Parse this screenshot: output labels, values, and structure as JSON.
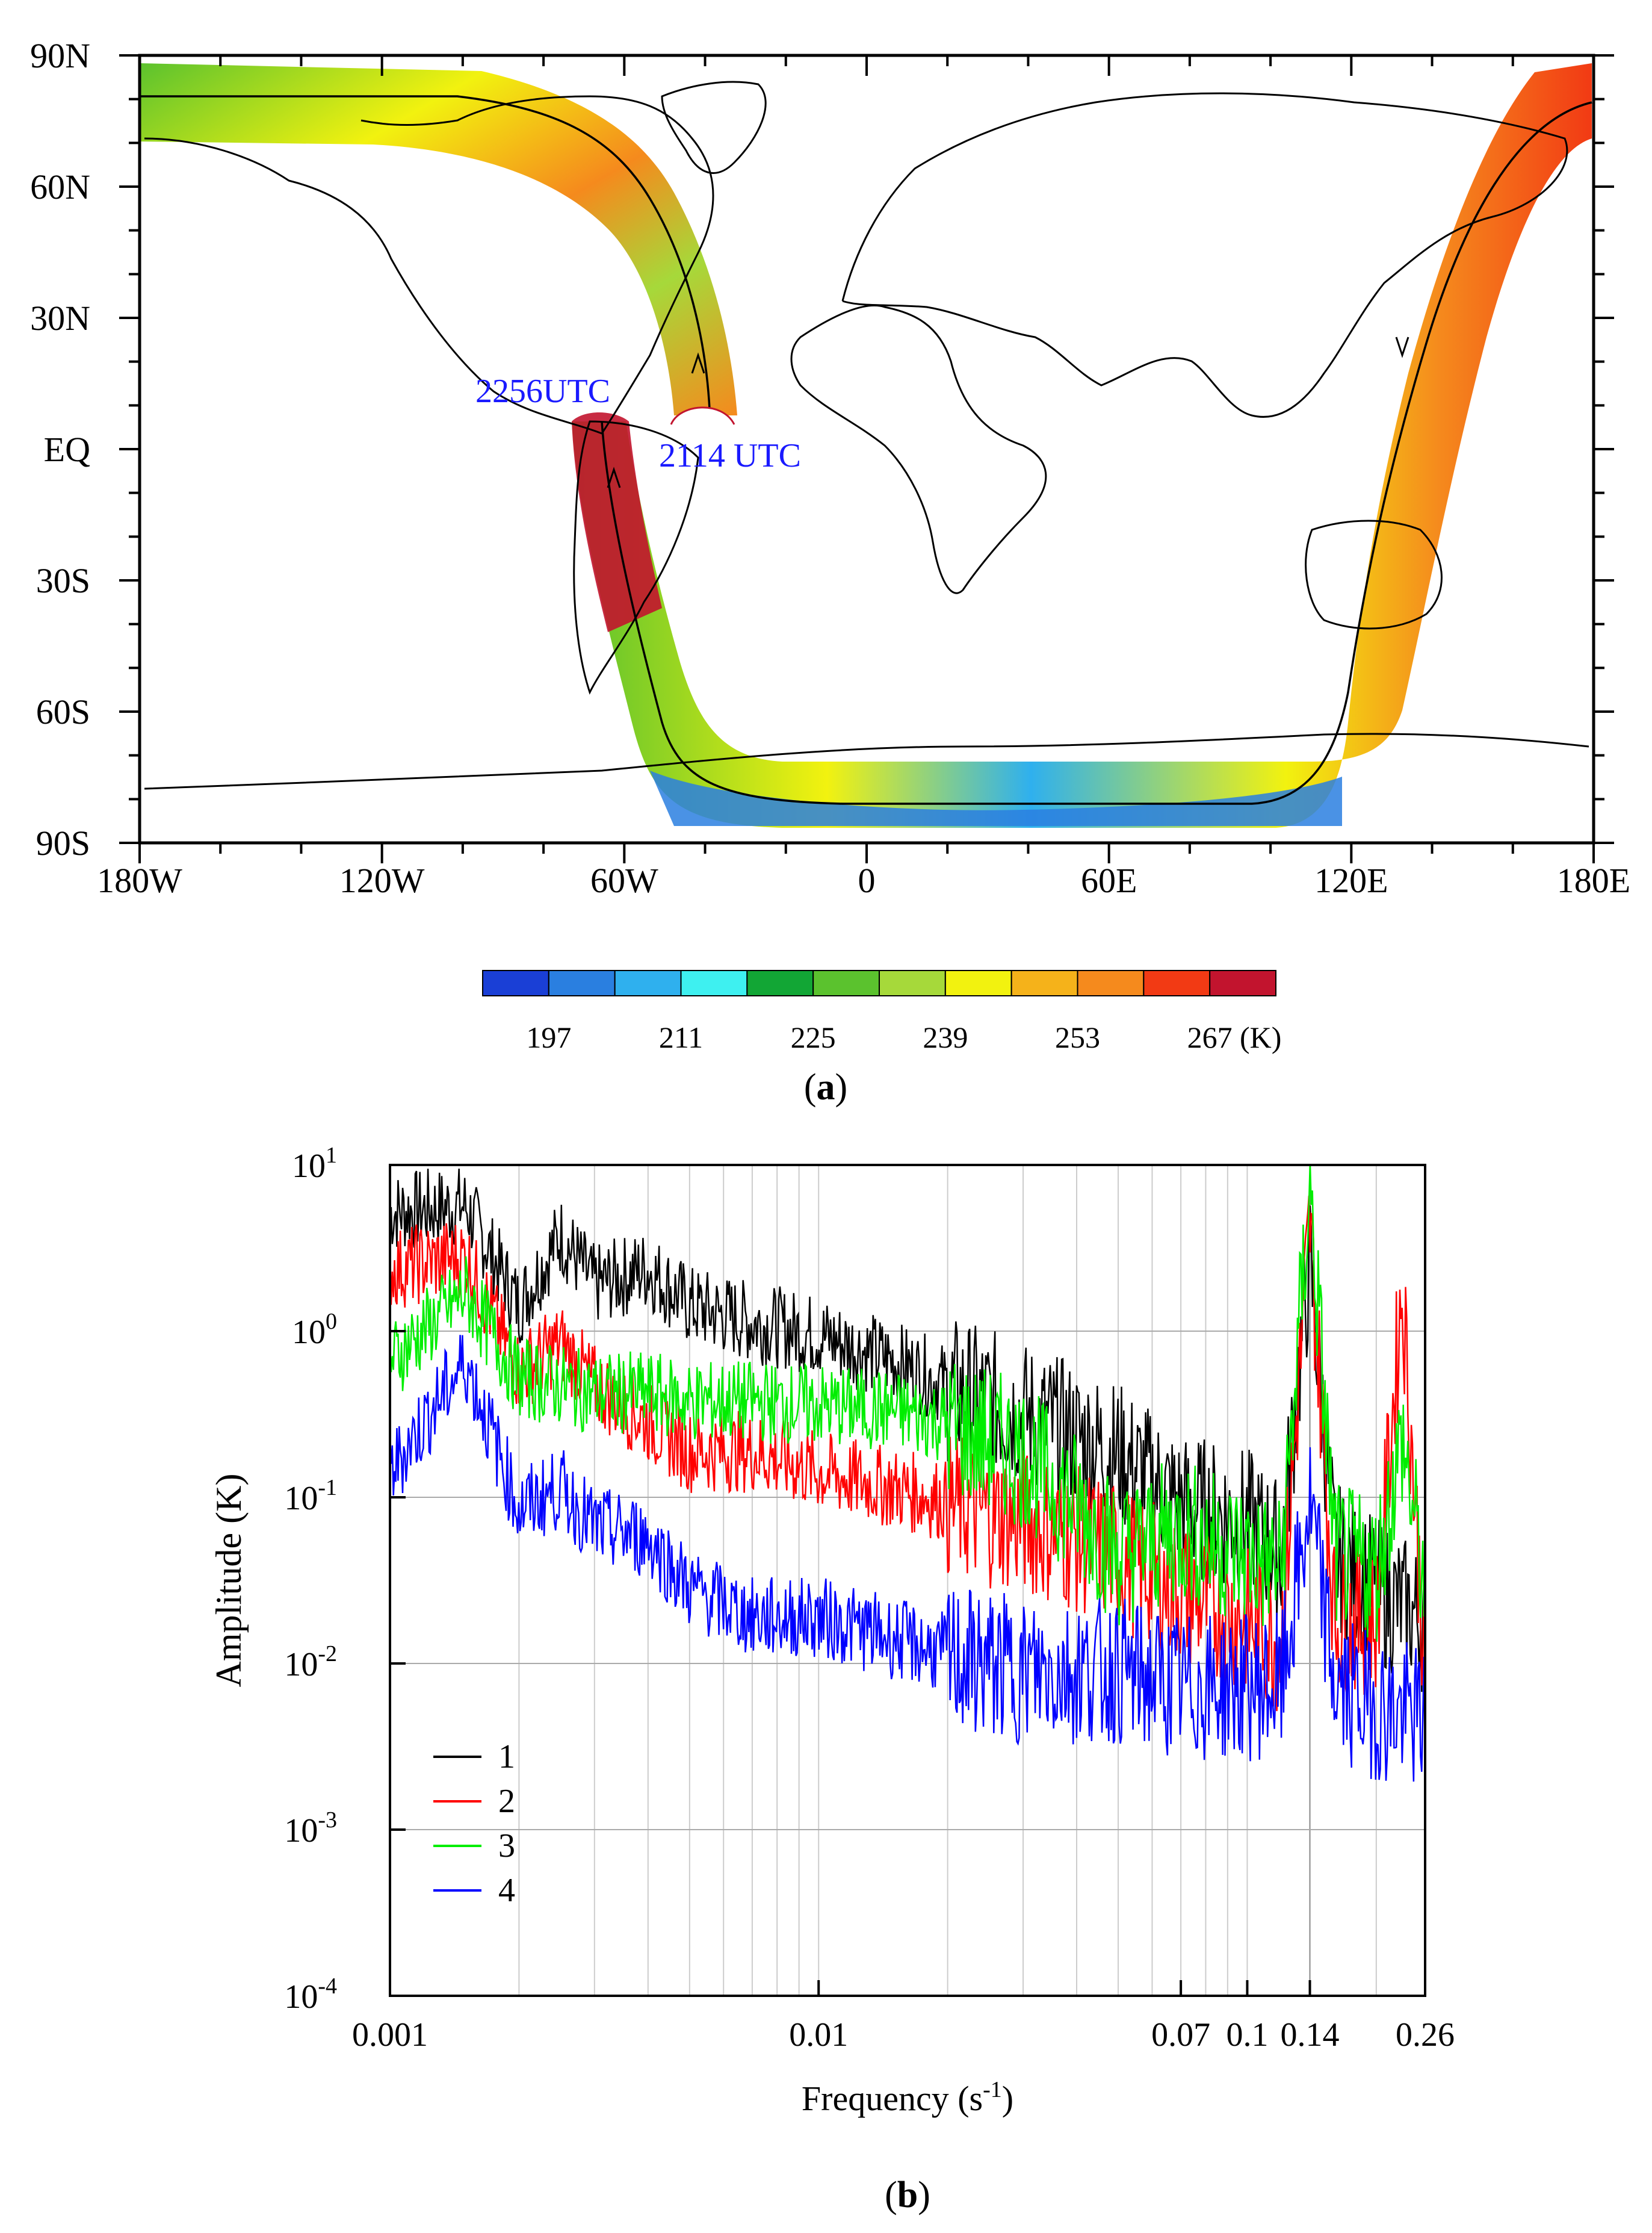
{
  "chart_data": [
    {
      "panel": "(a)",
      "type": "heatmap",
      "title": "",
      "lon_ticks": [
        "180W",
        "120W",
        "60W",
        "0",
        "60E",
        "120E",
        "180E"
      ],
      "lat_ticks": [
        "90N",
        "60N",
        "30N",
        "EQ",
        "30S",
        "60S",
        "90S"
      ],
      "lon_range": [
        -180,
        180
      ],
      "lat_range": [
        -90,
        90
      ],
      "annotations": [
        "2256UTC",
        "2114 UTC"
      ],
      "swath_track": [
        {
          "lon": -50,
          "lat": 3
        },
        {
          "lon": -48,
          "lat": 20
        },
        {
          "lon": -50,
          "lat": 40
        },
        {
          "lon": -60,
          "lat": 60
        },
        {
          "lon": -80,
          "lat": 75
        },
        {
          "lon": -120,
          "lat": 80
        },
        {
          "lon": -175,
          "lat": 80
        }
      ],
      "swath_track_2": [
        {
          "lon": -62,
          "lat": 6
        },
        {
          "lon": -60,
          "lat": -20
        },
        {
          "lon": -52,
          "lat": -45
        },
        {
          "lon": -35,
          "lat": -68
        },
        {
          "lon": 0,
          "lat": -79
        },
        {
          "lon": 50,
          "lat": -79
        },
        {
          "lon": 95,
          "lat": -72
        },
        {
          "lon": 115,
          "lat": -55
        },
        {
          "lon": 123,
          "lat": -30
        },
        {
          "lon": 130,
          "lat": 0
        },
        {
          "lon": 137,
          "lat": 30
        },
        {
          "lon": 148,
          "lat": 60
        },
        {
          "lon": 160,
          "lat": 75
        },
        {
          "lon": 180,
          "lat": 79
        }
      ],
      "colorbar": {
        "colors": [
          "#1a3fd6",
          "#2a7fe0",
          "#2fb0ee",
          "#3ef0f0",
          "#12a635",
          "#5bc22e",
          "#a6d93a",
          "#f2f20f",
          "#f5b21a",
          "#f58a1d",
          "#f23a14",
          "#c2142e"
        ],
        "tick_labels": [
          "197",
          "211",
          "225",
          "239",
          "253",
          "267"
        ],
        "unit": "(K)"
      }
    },
    {
      "panel": "(b)",
      "type": "line",
      "xscale": "log",
      "yscale": "log",
      "xlabel": "Frequency (s",
      "xlabel_sup": "-1",
      "xlabel_end": ")",
      "ylabel": "Amplitude (K)",
      "xlim": [
        0.001,
        0.26
      ],
      "ylim": [
        0.0001,
        10
      ],
      "x_ticks": [
        {
          "value": 0.001,
          "label": "0.001"
        },
        {
          "value": 0.01,
          "label": "0.01"
        },
        {
          "value": 0.07,
          "label": "0.07"
        },
        {
          "value": 0.1,
          "label": "0.1"
        },
        {
          "value": 0.14,
          "label": "0.14"
        },
        {
          "value": 0.26,
          "label": "0.26"
        }
      ],
      "y_ticks": [
        {
          "value": 10,
          "base": "10",
          "exp": "1"
        },
        {
          "value": 1,
          "base": "10",
          "exp": "0"
        },
        {
          "value": 0.1,
          "base": "10",
          "exp": "-1"
        },
        {
          "value": 0.01,
          "base": "10",
          "exp": "-2"
        },
        {
          "value": 0.001,
          "base": "10",
          "exp": "-3"
        },
        {
          "value": 0.0001,
          "base": "10",
          "exp": "-4"
        }
      ],
      "grid": true,
      "legend_position": "bottom-left",
      "series": [
        {
          "name": "1",
          "color": "#000000",
          "x": [
            0.001,
            0.0015,
            0.002,
            0.0025,
            0.003,
            0.004,
            0.005,
            0.007,
            0.01,
            0.015,
            0.02,
            0.03,
            0.05,
            0.07,
            0.1,
            0.12,
            0.14,
            0.16,
            0.2,
            0.26
          ],
          "values": [
            5.5,
            6.0,
            1.5,
            4.0,
            2.0,
            2.5,
            1.5,
            1.2,
            1.0,
            0.7,
            0.5,
            0.35,
            0.2,
            0.1,
            0.08,
            0.05,
            3.0,
            0.05,
            0.03,
            0.02
          ]
        },
        {
          "name": "2",
          "color": "#ff0000",
          "x": [
            0.001,
            0.0015,
            0.002,
            0.0025,
            0.003,
            0.004,
            0.005,
            0.007,
            0.01,
            0.015,
            0.02,
            0.03,
            0.05,
            0.07,
            0.1,
            0.12,
            0.14,
            0.16,
            0.2,
            0.23,
            0.26
          ],
          "values": [
            2.5,
            3.0,
            0.6,
            0.9,
            0.5,
            0.3,
            0.2,
            0.2,
            0.15,
            0.12,
            0.1,
            0.08,
            0.05,
            0.03,
            0.02,
            0.015,
            5.0,
            0.02,
            0.02,
            2.0,
            0.01
          ]
        },
        {
          "name": "3",
          "color": "#00ee00",
          "x": [
            0.001,
            0.0015,
            0.002,
            0.0025,
            0.003,
            0.004,
            0.005,
            0.007,
            0.01,
            0.015,
            0.02,
            0.03,
            0.04,
            0.05,
            0.07,
            0.1,
            0.12,
            0.14,
            0.16,
            0.2,
            0.23,
            0.26
          ],
          "values": [
            0.7,
            1.8,
            0.55,
            0.5,
            0.45,
            0.45,
            0.4,
            0.4,
            0.38,
            0.35,
            0.3,
            0.2,
            0.1,
            0.05,
            0.07,
            0.05,
            0.04,
            8.0,
            0.05,
            0.04,
            0.25,
            0.03
          ]
        },
        {
          "name": "4",
          "color": "#0000ff",
          "x": [
            0.001,
            0.0015,
            0.002,
            0.0025,
            0.003,
            0.004,
            0.005,
            0.007,
            0.01,
            0.015,
            0.02,
            0.03,
            0.05,
            0.07,
            0.1,
            0.12,
            0.14,
            0.16,
            0.2,
            0.26
          ],
          "values": [
            0.15,
            0.7,
            0.09,
            0.12,
            0.07,
            0.06,
            0.03,
            0.02,
            0.02,
            0.015,
            0.012,
            0.01,
            0.01,
            0.008,
            0.008,
            0.008,
            0.1,
            0.008,
            0.006,
            0.005
          ]
        }
      ]
    }
  ],
  "captions": {
    "panel_a": "a",
    "panel_b": "b"
  }
}
